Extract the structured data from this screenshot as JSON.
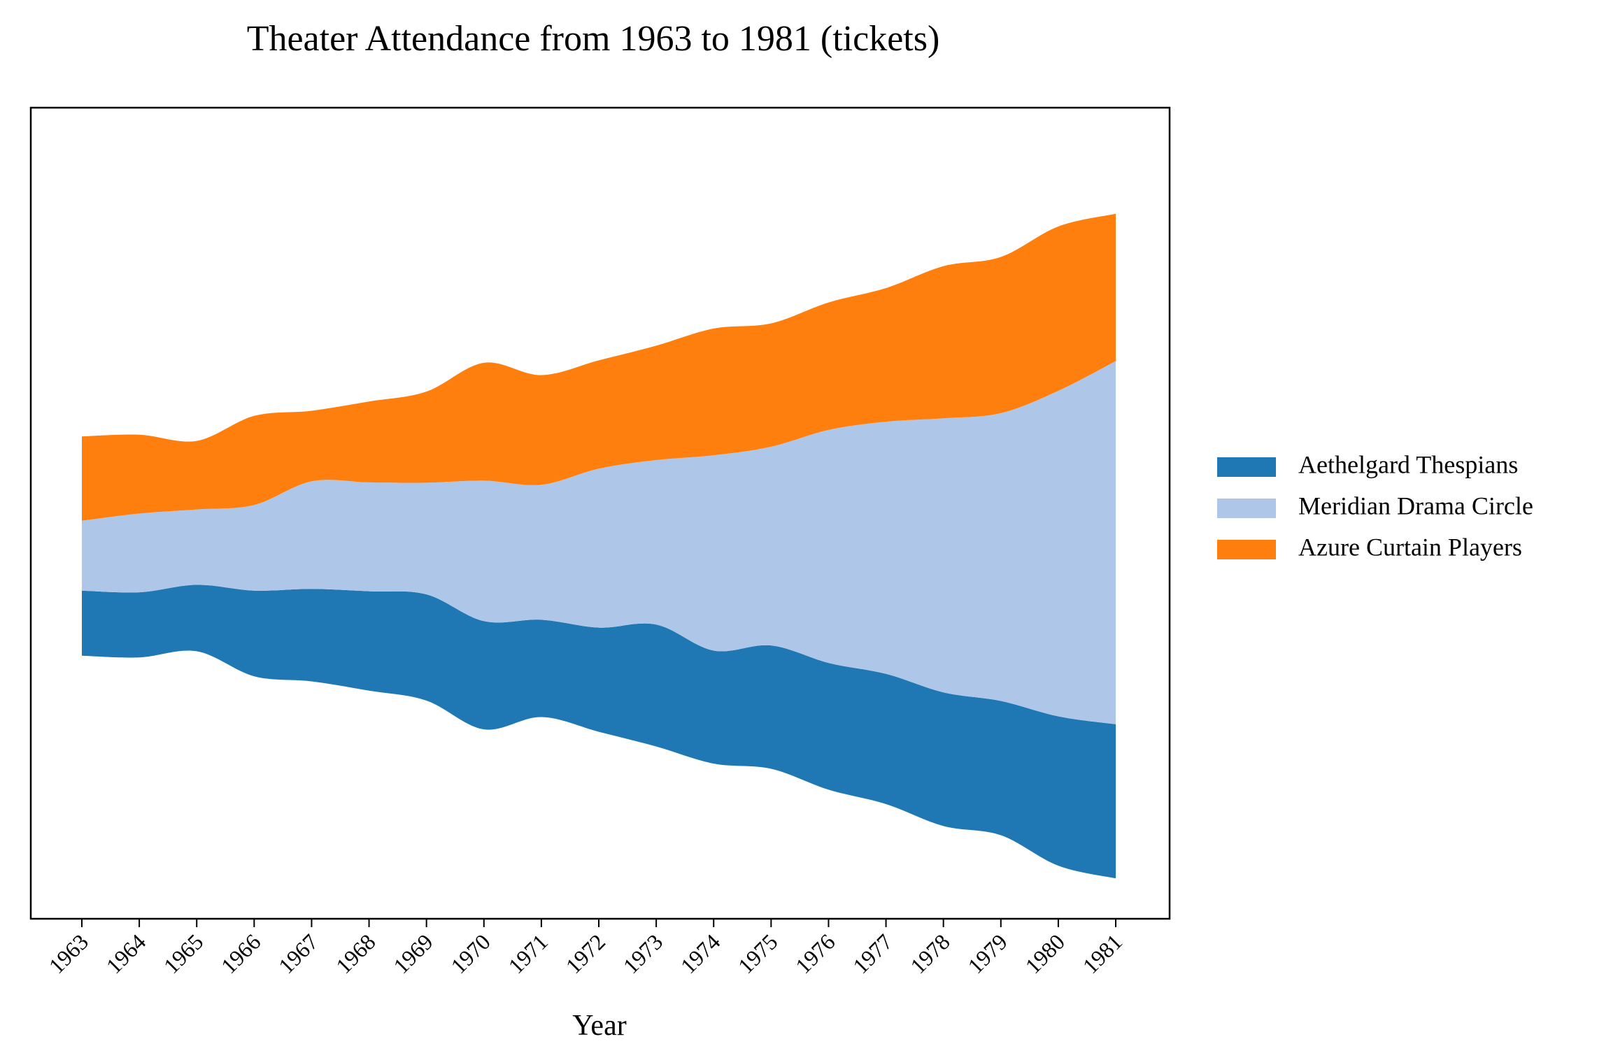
{
  "chart_data": {
    "type": "area",
    "title": "Theater Attendance from 1963 to 1981 (tickets)",
    "xlabel": "Year",
    "ylabel": "",
    "baseline": "centered-streamgraph",
    "x": [
      "1963",
      "1964",
      "1965",
      "1966",
      "1967",
      "1968",
      "1969",
      "1970",
      "1971",
      "1972",
      "1973",
      "1974",
      "1975",
      "1976",
      "1977",
      "1978",
      "1979",
      "1980",
      "1981"
    ],
    "series": [
      {
        "name": "Aethelgard Thespians",
        "color": "#1f77b4",
        "values": [
          95,
          95,
          97,
          125,
          135,
          145,
          155,
          158,
          142,
          152,
          178,
          165,
          180,
          185,
          190,
          195,
          196,
          218,
          225
        ]
      },
      {
        "name": "Meridian Drama Circle",
        "color": "#aec7e8",
        "values": [
          102,
          115,
          110,
          125,
          157,
          159,
          163,
          205,
          197,
          232,
          240,
          285,
          290,
          340,
          368,
          400,
          420,
          475,
          530
        ]
      },
      {
        "name": "Azure Curtain Players",
        "color": "#ff7f0e",
        "values": [
          123,
          115,
          100,
          130,
          103,
          118,
          133,
          172,
          160,
          158,
          167,
          185,
          180,
          186,
          195,
          222,
          228,
          240,
          215
        ]
      }
    ],
    "legend_position": "center-right",
    "y_ticks_shown": false,
    "grid": false
  }
}
